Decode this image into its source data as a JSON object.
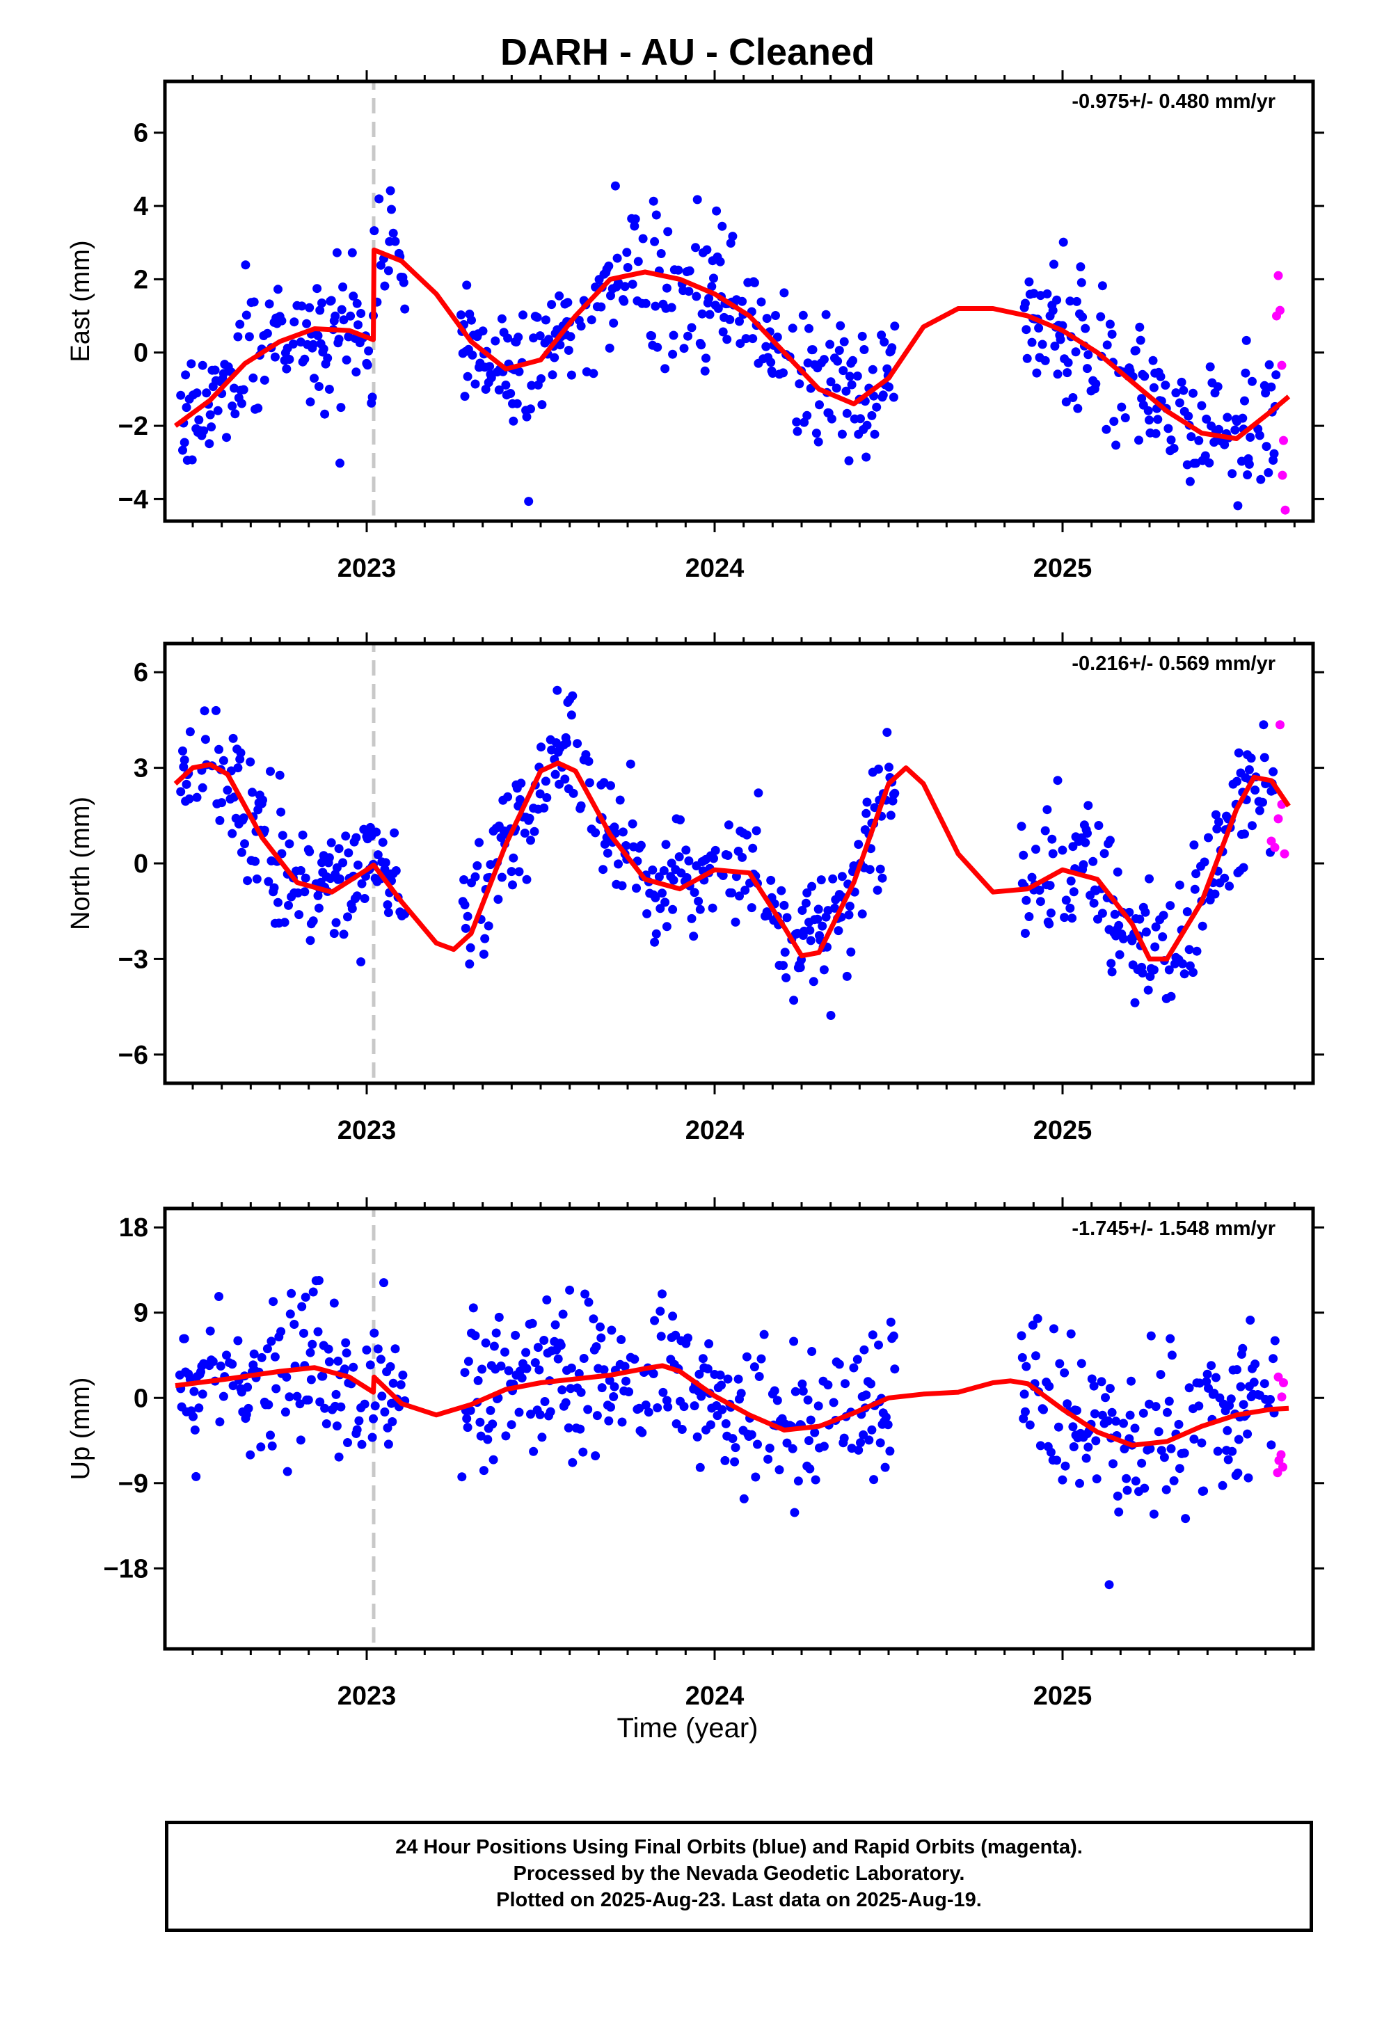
{
  "title": "DARH  - AU - Cleaned",
  "xlabel": "Time (year)",
  "footer": {
    "line1": "24 Hour Positions Using Final Orbits (blue) and Rapid Orbits (magenta).",
    "line2": "Processed by the Nevada Geodetic Laboratory.",
    "line3": "Plotted on 2025-Aug-23. Last data on 2025-Aug-19."
  },
  "colors": {
    "final": "#0000ff",
    "rapid": "#ff00ff",
    "model": "#ff0000",
    "break": "#c8c8c8"
  },
  "chart_data": [
    {
      "type": "scatter",
      "ylabel": "East (mm)",
      "rate_label": "-0.975+/- 0.480 mm/yr",
      "xlim": [
        2022.42,
        2025.72
      ],
      "ylim": [
        -4.6,
        7.4
      ],
      "xticks": [
        2023,
        2024,
        2025
      ],
      "yticks": [
        -4,
        -2,
        0,
        2,
        4,
        6
      ],
      "break_x": 2023.02,
      "gaps": [
        [
          2023.11,
          2023.27
        ],
        [
          2024.52,
          2024.88
        ]
      ],
      "noise": 0.9,
      "model_x": [
        2022.45,
        2022.55,
        2022.65,
        2022.75,
        2022.85,
        2022.95,
        2023.019,
        2023.021,
        2023.1,
        2023.2,
        2023.3,
        2023.4,
        2023.5,
        2023.6,
        2023.7,
        2023.8,
        2023.9,
        2024.0,
        2024.1,
        2024.2,
        2024.3,
        2024.4,
        2024.5,
        2024.6,
        2024.7,
        2024.8,
        2024.9,
        2025.0,
        2025.1,
        2025.2,
        2025.3,
        2025.4,
        2025.5,
        2025.6,
        2025.65
      ],
      "model_y": [
        -2.0,
        -1.3,
        -0.3,
        0.3,
        0.65,
        0.6,
        0.35,
        2.8,
        2.5,
        1.6,
        0.3,
        -0.45,
        -0.2,
        1.0,
        2.0,
        2.2,
        2.0,
        1.6,
        1.0,
        0.0,
        -1.0,
        -1.4,
        -0.7,
        0.7,
        1.2,
        1.2,
        1.0,
        0.6,
        0.0,
        -0.8,
        -1.6,
        -2.2,
        -2.35,
        -1.6,
        -1.2
      ],
      "rapid": [
        [
          2025.62,
          2.1
        ],
        [
          2025.615,
          1.0
        ],
        [
          2025.625,
          1.15
        ],
        [
          2025.63,
          -0.35
        ],
        [
          2025.635,
          -2.4
        ],
        [
          2025.632,
          -3.35
        ],
        [
          2025.64,
          -4.3
        ]
      ]
    },
    {
      "type": "scatter",
      "ylabel": "North (mm)",
      "rate_label": "-0.216+/- 0.569 mm/yr",
      "xlim": [
        2022.42,
        2025.72
      ],
      "ylim": [
        -6.9,
        6.9
      ],
      "xticks": [
        2023,
        2024,
        2025
      ],
      "yticks": [
        -6,
        -3,
        0,
        3,
        6
      ],
      "break_x": 2023.02,
      "gaps": [
        [
          2023.11,
          2023.27
        ],
        [
          2024.52,
          2024.88
        ]
      ],
      "noise": 1.0,
      "model_x": [
        2022.45,
        2022.5,
        2022.55,
        2022.6,
        2022.7,
        2022.8,
        2022.9,
        2023.0,
        2023.02,
        2023.1,
        2023.2,
        2023.25,
        2023.3,
        2023.4,
        2023.5,
        2023.55,
        2023.6,
        2023.7,
        2023.8,
        2023.9,
        2024.0,
        2024.1,
        2024.2,
        2024.25,
        2024.3,
        2024.4,
        2024.5,
        2024.55,
        2024.6,
        2024.7,
        2024.8,
        2024.9,
        2025.0,
        2025.1,
        2025.2,
        2025.25,
        2025.3,
        2025.4,
        2025.5,
        2025.55,
        2025.6,
        2025.65
      ],
      "model_y": [
        2.5,
        3.0,
        3.1,
        2.8,
        0.8,
        -0.6,
        -0.9,
        -0.2,
        -0.05,
        -1.2,
        -2.5,
        -2.7,
        -2.2,
        0.6,
        2.9,
        3.15,
        2.9,
        0.9,
        -0.5,
        -0.8,
        -0.2,
        -0.3,
        -2.0,
        -2.9,
        -2.8,
        -0.6,
        2.5,
        3.0,
        2.5,
        0.3,
        -0.9,
        -0.8,
        -0.2,
        -0.5,
        -1.9,
        -3.0,
        -3.0,
        -1.2,
        1.7,
        2.7,
        2.6,
        1.8
      ],
      "rapid": [
        [
          2025.625,
          4.35
        ],
        [
          2025.63,
          1.85
        ],
        [
          2025.62,
          1.4
        ],
        [
          2025.6,
          0.7
        ],
        [
          2025.61,
          0.5
        ],
        [
          2025.638,
          0.3
        ]
      ]
    },
    {
      "type": "scatter",
      "ylabel": "Up (mm)",
      "rate_label": "-1.745+/- 1.548 mm/yr",
      "xlim": [
        2022.42,
        2025.72
      ],
      "ylim": [
        -26.5,
        20
      ],
      "xticks": [
        2023,
        2024,
        2025
      ],
      "yticks": [
        -18,
        -9,
        0,
        9,
        18
      ],
      "break_x": 2023.02,
      "gaps": [
        [
          2023.11,
          2023.27
        ],
        [
          2024.52,
          2024.88
        ]
      ],
      "noise": 4.2,
      "model_x": [
        2022.45,
        2022.6,
        2022.75,
        2022.85,
        2022.95,
        2023.019,
        2023.021,
        2023.1,
        2023.2,
        2023.3,
        2023.4,
        2023.5,
        2023.6,
        2023.7,
        2023.8,
        2023.85,
        2023.9,
        2024.0,
        2024.1,
        2024.2,
        2024.3,
        2024.4,
        2024.5,
        2024.6,
        2024.7,
        2024.8,
        2024.85,
        2024.9,
        2025.0,
        2025.1,
        2025.2,
        2025.3,
        2025.4,
        2025.5,
        2025.6,
        2025.65
      ],
      "model_y": [
        1.3,
        2.0,
        2.8,
        3.2,
        2.2,
        0.6,
        2.2,
        -0.6,
        -1.8,
        -0.7,
        0.9,
        1.6,
        2.0,
        2.4,
        3.1,
        3.4,
        2.8,
        0.2,
        -1.8,
        -3.4,
        -3.0,
        -1.6,
        0.0,
        0.4,
        0.6,
        1.6,
        1.8,
        1.5,
        -1.2,
        -3.6,
        -5.0,
        -4.6,
        -3.0,
        -1.8,
        -1.2,
        -1.1
      ],
      "rapid": [
        [
          2025.62,
          2.2
        ],
        [
          2025.635,
          1.6
        ],
        [
          2025.63,
          0.1
        ],
        [
          2025.628,
          -6.0
        ],
        [
          2025.622,
          -6.6
        ],
        [
          2025.633,
          -7.3
        ],
        [
          2025.618,
          -7.9
        ]
      ]
    }
  ]
}
